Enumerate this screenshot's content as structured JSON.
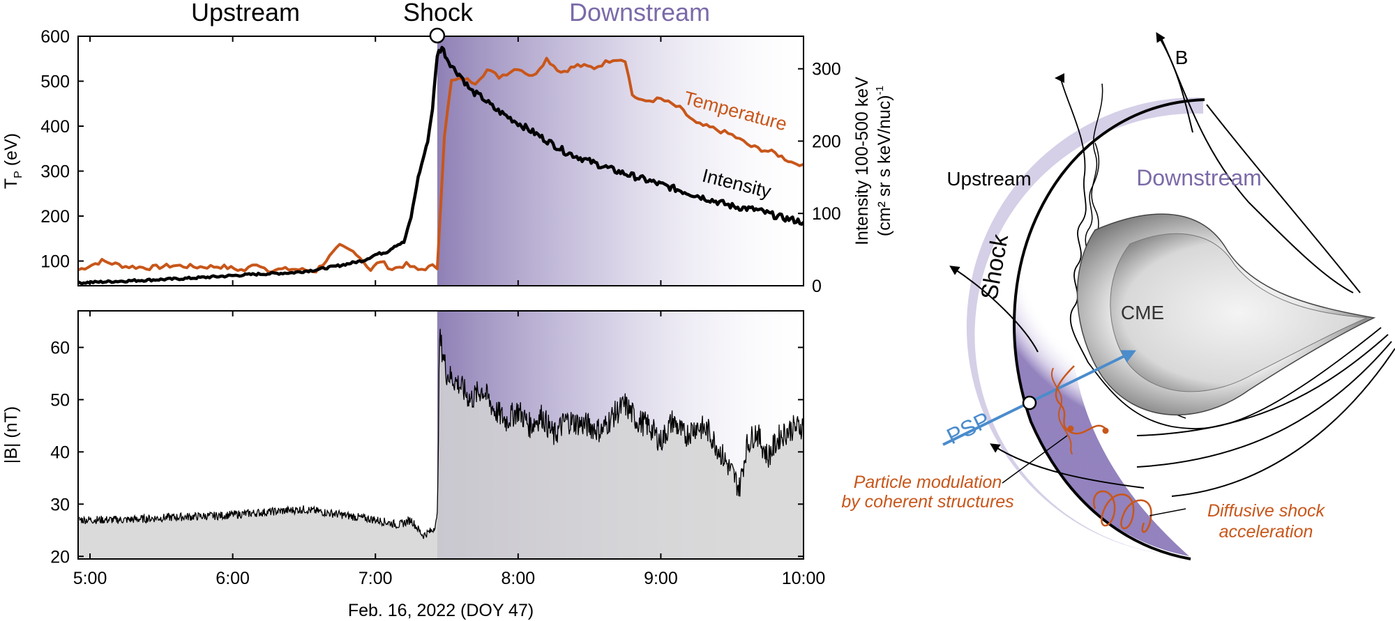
{
  "header": {
    "upstream": "Upstream",
    "shock": "Shock",
    "downstream": "Downstream"
  },
  "colors": {
    "downstream_purple": "#7b6aa8",
    "temperature": "#c8561a",
    "intensity": "#000000",
    "field_fill": "#d3d3d3",
    "psp_blue": "#4a8ccc",
    "particle_orange": "#c8561a"
  },
  "chart_data": [
    {
      "type": "line",
      "panel": "top",
      "x_ticks": [
        "5:00",
        "6:00",
        "7:00",
        "8:00",
        "9:00",
        "10:00"
      ],
      "xlim": [
        "4:55",
        "10:00"
      ],
      "ylabel_left": "T",
      "ylabel_left_sub": "P",
      "ylabel_left_unit": " (eV)",
      "ylim_left": [
        45,
        600
      ],
      "yticks_left": [
        100,
        200,
        300,
        400,
        500,
        600
      ],
      "ylabel_right_line1": "Intensity 100-500 keV",
      "ylabel_right_line2": "(cm² sr s keV/nuc)",
      "ylabel_right_sup": "-1",
      "ylim_right": [
        0,
        345
      ],
      "yticks_right": [
        0,
        100,
        200,
        300
      ],
      "shock_time": "7:26",
      "series": [
        {
          "name": "Temperature",
          "axis": "left",
          "color": "#c8561a",
          "x": [
            "4:55",
            "5:05",
            "5:15",
            "5:25",
            "5:35",
            "5:45",
            "5:55",
            "6:05",
            "6:10",
            "6:15",
            "6:25",
            "6:35",
            "6:45",
            "6:52",
            "6:58",
            "7:02",
            "7:07",
            "7:13",
            "7:18",
            "7:24",
            "7:26",
            "7:29",
            "7:32",
            "7:37",
            "7:42",
            "7:47",
            "7:52",
            "8:00",
            "8:06",
            "8:12",
            "8:18",
            "8:25",
            "8:32",
            "8:40",
            "8:45",
            "8:48",
            "8:52",
            "9:00",
            "9:08",
            "9:15",
            "9:22",
            "9:30",
            "9:38",
            "9:48",
            "9:55",
            "10:00"
          ],
          "y": [
            80,
            100,
            88,
            85,
            90,
            87,
            88,
            79,
            95,
            80,
            82,
            78,
            133,
            118,
            80,
            100,
            82,
            92,
            80,
            88,
            85,
            380,
            500,
            505,
            498,
            525,
            510,
            530,
            510,
            550,
            520,
            535,
            530,
            550,
            548,
            470,
            455,
            460,
            440,
            405,
            395,
            380,
            355,
            340,
            320,
            315
          ]
        },
        {
          "name": "Intensity",
          "axis": "right",
          "color": "#000000",
          "x": [
            "4:55",
            "5:10",
            "5:25",
            "5:40",
            "5:55",
            "6:10",
            "6:25",
            "6:35",
            "6:45",
            "6:55",
            "7:00",
            "7:05",
            "7:08",
            "7:12",
            "7:15",
            "7:18",
            "7:20",
            "7:22",
            "7:24",
            "7:26",
            "7:28",
            "7:30",
            "7:33",
            "7:36",
            "7:40",
            "7:45",
            "7:50",
            "7:55",
            "8:00",
            "8:10",
            "8:20",
            "8:30",
            "8:40",
            "8:50",
            "9:00",
            "9:10",
            "9:20",
            "9:30",
            "9:40",
            "9:50",
            "10:00"
          ],
          "y": [
            4,
            6,
            8,
            10,
            13,
            16,
            18,
            22,
            28,
            35,
            43,
            47,
            55,
            60,
            95,
            150,
            175,
            200,
            245,
            320,
            330,
            315,
            300,
            290,
            270,
            260,
            245,
            235,
            225,
            205,
            185,
            172,
            160,
            150,
            140,
            130,
            120,
            110,
            105,
            95,
            88
          ]
        }
      ]
    },
    {
      "type": "area",
      "panel": "bottom",
      "x_ticks": [
        "5:00",
        "6:00",
        "7:00",
        "8:00",
        "9:00",
        "10:00"
      ],
      "xlim": [
        "4:55",
        "10:00"
      ],
      "xlabel": "Feb. 16, 2022 (DOY 47)",
      "ylabel": "|B| (nT)",
      "ylim": [
        19.5,
        67
      ],
      "yticks": [
        20,
        30,
        40,
        50,
        60
      ],
      "series": [
        {
          "name": "|B|",
          "color": "#000000",
          "x": [
            "4:55",
            "5:15",
            "5:35",
            "5:55",
            "6:15",
            "6:30",
            "6:45",
            "7:00",
            "7:10",
            "7:15",
            "7:20",
            "7:24",
            "7:26",
            "7:27",
            "7:30",
            "7:35",
            "7:40",
            "7:45",
            "7:50",
            "7:55",
            "8:00",
            "8:05",
            "8:10",
            "8:15",
            "8:20",
            "8:30",
            "8:35",
            "8:40",
            "8:45",
            "8:50",
            "8:55",
            "9:00",
            "9:05",
            "9:10",
            "9:15",
            "9:20",
            "9:25",
            "9:30",
            "9:33",
            "9:36",
            "9:40",
            "9:45",
            "9:50",
            "9:55",
            "10:00"
          ],
          "y": [
            27,
            27,
            27.5,
            27.8,
            28.5,
            29,
            28,
            27,
            26,
            27,
            24,
            25,
            27,
            62,
            55,
            53,
            50,
            52,
            48,
            46,
            48,
            45,
            47,
            43,
            46,
            45,
            44,
            47,
            49,
            46,
            45,
            42,
            46,
            43,
            45,
            44,
            40,
            36,
            33,
            41,
            44,
            39,
            43,
            44.5,
            45
          ]
        }
      ]
    }
  ],
  "schematic": {
    "b_label": "B",
    "upstream": "Upstream",
    "downstream": "Downstream",
    "shock": "Shock",
    "cme": "CME",
    "psp": "PSP",
    "particle_mod_line1": "Particle modulation",
    "particle_mod_line2": "by coherent structures",
    "dsa_line1": "Diffusive shock",
    "dsa_line2": "acceleration"
  }
}
